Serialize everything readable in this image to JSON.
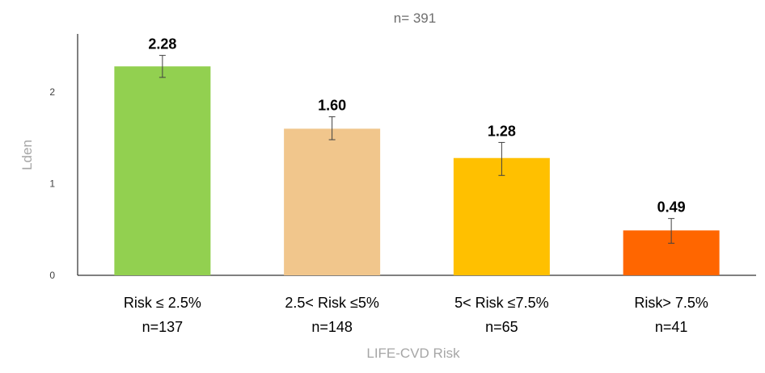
{
  "chart_data": {
    "type": "bar",
    "title": "n= 391",
    "xlabel": "LIFE-CVD Risk",
    "ylabel": "Lden",
    "ylim": [
      0,
      2.7
    ],
    "yticks": [
      0,
      1,
      2
    ],
    "grid": false,
    "categories": [
      {
        "line1": "Risk ≤ 2.5%",
        "line2": "n=137"
      },
      {
        "line1": "2.5< Risk ≤5%",
        "line2": "n=148"
      },
      {
        "line1": "5< Risk ≤7.5%",
        "line2": "n=65"
      },
      {
        "line1": "Risk> 7.5%",
        "line2": "n=41"
      }
    ],
    "values": [
      2.28,
      1.6,
      1.28,
      0.49
    ],
    "value_labels": [
      "2.28",
      "1.60",
      "1.28",
      "0.49"
    ],
    "error_low": [
      2.16,
      1.48,
      1.09,
      0.35
    ],
    "error_high": [
      2.4,
      1.73,
      1.45,
      0.62
    ],
    "colors": [
      "#92d050",
      "#f1c68c",
      "#ffc000",
      "#ff6600"
    ]
  }
}
